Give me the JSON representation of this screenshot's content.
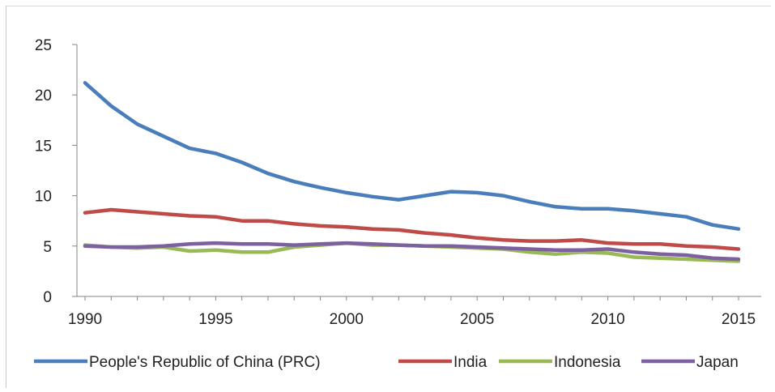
{
  "chart_data": {
    "type": "line",
    "title": "",
    "xlabel": "",
    "ylabel": "",
    "xlim": [
      1990,
      2015
    ],
    "ylim": [
      0,
      25
    ],
    "x_ticks": [
      "1990",
      "1995",
      "2000",
      "2005",
      "2010",
      "2015"
    ],
    "y_ticks": [
      "0",
      "5",
      "10",
      "15",
      "20",
      "25"
    ],
    "grid": false,
    "legend_position": "bottom",
    "x": [
      1990,
      1991,
      1992,
      1993,
      1994,
      1995,
      1996,
      1997,
      1998,
      1999,
      2000,
      2001,
      2002,
      2003,
      2004,
      2005,
      2006,
      2007,
      2008,
      2009,
      2010,
      2011,
      2012,
      2013,
      2014,
      2015
    ],
    "series": [
      {
        "name": "People's Republic of China (PRC)",
        "color": "#4a7ebb",
        "values": [
          21.2,
          18.9,
          17.1,
          15.9,
          14.7,
          14.2,
          13.3,
          12.2,
          11.4,
          10.8,
          10.3,
          9.9,
          9.6,
          10.0,
          10.4,
          10.3,
          10.0,
          9.4,
          8.9,
          8.7,
          8.7,
          8.5,
          8.2,
          7.9,
          7.1,
          6.7
        ]
      },
      {
        "name": "India",
        "color": "#be4b48",
        "values": [
          8.3,
          8.6,
          8.4,
          8.2,
          8.0,
          7.9,
          7.5,
          7.5,
          7.2,
          7.0,
          6.9,
          6.7,
          6.6,
          6.3,
          6.1,
          5.8,
          5.6,
          5.5,
          5.5,
          5.6,
          5.3,
          5.2,
          5.2,
          5.0,
          4.9,
          4.7
        ]
      },
      {
        "name": "Indonesia",
        "color": "#98b954",
        "values": [
          5.1,
          4.9,
          4.8,
          4.9,
          4.5,
          4.6,
          4.4,
          4.4,
          4.9,
          5.1,
          5.3,
          5.1,
          5.1,
          5.0,
          4.9,
          4.8,
          4.7,
          4.4,
          4.2,
          4.4,
          4.3,
          3.9,
          3.8,
          3.7,
          3.6,
          3.5
        ]
      },
      {
        "name": "Japan",
        "color": "#7d60a0",
        "values": [
          5.0,
          4.9,
          4.9,
          5.0,
          5.2,
          5.3,
          5.2,
          5.2,
          5.1,
          5.2,
          5.3,
          5.2,
          5.1,
          5.0,
          5.0,
          4.9,
          4.8,
          4.7,
          4.6,
          4.6,
          4.7,
          4.4,
          4.2,
          4.1,
          3.8,
          3.7
        ]
      }
    ]
  }
}
